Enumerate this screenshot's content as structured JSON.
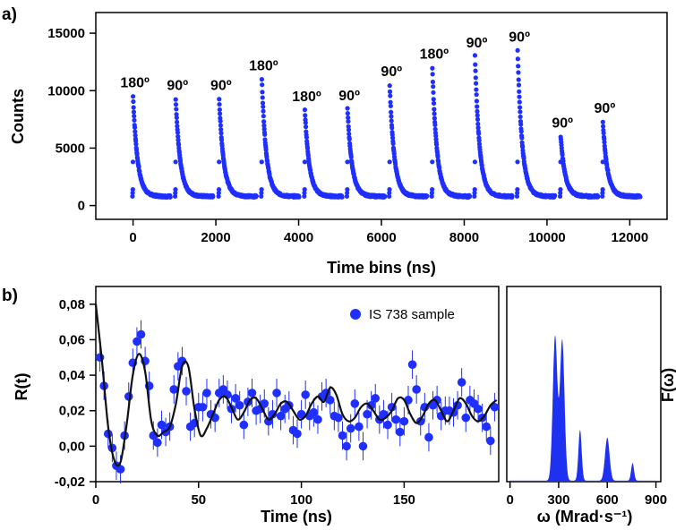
{
  "colors": {
    "points": "#1f2fff",
    "fit": "#111111",
    "axes": "#000000",
    "spectrum": "#1e30f0"
  },
  "chart_data": [
    {
      "panel": "a)",
      "type": "scatter",
      "xlabel": "Time bins (ns)",
      "ylabel": "Counts",
      "xlim": [
        -900,
        12900
      ],
      "ylim": [
        -1200,
        16800
      ],
      "xticks": [
        0,
        2000,
        4000,
        6000,
        8000,
        10000,
        12000
      ],
      "yticks": [
        0,
        5000,
        10000,
        15000
      ],
      "decays": [
        {
          "start": 0,
          "peak": 9500,
          "label": "180º"
        },
        {
          "start": 1030,
          "peak": 9300,
          "label": "90º"
        },
        {
          "start": 2080,
          "peak": 9300,
          "label": "90º"
        },
        {
          "start": 3110,
          "peak": 11000,
          "label": "180º"
        },
        {
          "start": 4150,
          "peak": 8300,
          "label": "180º"
        },
        {
          "start": 5180,
          "peak": 8400,
          "label": "90º"
        },
        {
          "start": 6200,
          "peak": 10500,
          "label": "90º"
        },
        {
          "start": 7230,
          "peak": 12000,
          "label": "180º"
        },
        {
          "start": 8260,
          "peak": 13000,
          "label": "90º"
        },
        {
          "start": 9290,
          "peak": 13500,
          "label": "90º"
        },
        {
          "start": 10330,
          "peak": 6000,
          "label": "90º"
        },
        {
          "start": 11350,
          "peak": 7300,
          "label": "90º"
        }
      ],
      "baseline": 800,
      "decay_constant_ns": 110,
      "segment_length_ns": 900
    },
    {
      "panel": "b)",
      "type": "scatter",
      "xlabel": "Time (ns)",
      "ylabel": "R(t)",
      "xlim": [
        0,
        196
      ],
      "ylim": [
        -0.02,
        0.09
      ],
      "xticks": [
        0,
        50,
        100,
        150
      ],
      "yticks": [
        -0.02,
        0.0,
        0.02,
        0.04,
        0.06,
        0.08
      ],
      "ytick_labels": [
        "-0,02",
        "0,00",
        "0,02",
        "0,04",
        "0,06",
        "0,08"
      ],
      "legend": "IS 738 sample",
      "series": [
        {
          "name": "IS 738 sample",
          "x": [
            2,
            4,
            6,
            8,
            10,
            12,
            14,
            16,
            18,
            20,
            22,
            24,
            26,
            28,
            30,
            32,
            34,
            36,
            38,
            40,
            42,
            44,
            46,
            48,
            50,
            52,
            54,
            56,
            58,
            60,
            62,
            64,
            66,
            68,
            70,
            72,
            74,
            76,
            78,
            80,
            82,
            84,
            86,
            88,
            90,
            92,
            94,
            96,
            98,
            100,
            102,
            104,
            106,
            108,
            110,
            112,
            114,
            116,
            118,
            120,
            122,
            124,
            126,
            128,
            130,
            132,
            134,
            136,
            138,
            140,
            142,
            144,
            146,
            148,
            150,
            152,
            154,
            156,
            158,
            160,
            162,
            164,
            166,
            168,
            170,
            172,
            174,
            176,
            178,
            180,
            182,
            184,
            186,
            188,
            190,
            192,
            194
          ],
          "y": [
            0.05,
            0.034,
            0.007,
            -0.001,
            -0.011,
            -0.013,
            0.006,
            0.028,
            0.047,
            0.059,
            0.063,
            0.048,
            0.034,
            0.006,
            0.002,
            0.012,
            0.008,
            0.011,
            0.032,
            0.045,
            0.048,
            0.031,
            0.011,
            0.013,
            0.022,
            0.022,
            0.03,
            0.018,
            0.016,
            0.03,
            0.032,
            0.029,
            0.021,
            0.027,
            0.023,
            0.012,
            0.025,
            0.03,
            0.02,
            0.021,
            0.024,
            0.014,
            0.018,
            0.03,
            0.017,
            0.021,
            0.023,
            0.009,
            0.007,
            0.018,
            0.029,
            0.017,
            0.019,
            0.015,
            0.028,
            0.03,
            0.026,
            0.017,
            0.016,
            0.006,
            0.0,
            0.01,
            0.024,
            0.011,
            0.0,
            0.018,
            0.023,
            0.027,
            0.015,
            0.018,
            0.012,
            0.022,
            0.015,
            0.008,
            0.014,
            0.026,
            0.046,
            0.032,
            0.014,
            0.022,
            0.005,
            0.023,
            0.026,
            0.017,
            0.02,
            0.02,
            0.019,
            0.023,
            0.036,
            0.016,
            0.026,
            0.024,
            0.021,
            0.016,
            0.011,
            0.003,
            0.022
          ],
          "error": 0.008
        }
      ],
      "fit": {
        "name": "fit",
        "x": [
          0,
          3,
          6,
          9,
          12,
          15,
          18,
          21,
          24,
          27,
          30,
          33,
          36,
          39,
          42,
          45,
          48,
          51,
          54,
          57,
          60,
          63,
          66,
          69,
          72,
          75,
          78,
          81,
          84,
          87,
          90,
          93,
          96,
          99,
          102,
          105,
          108,
          111,
          114,
          117,
          120,
          123,
          126,
          129,
          132,
          135,
          138,
          141,
          144,
          147,
          150,
          153,
          156,
          159,
          162,
          165,
          168,
          171,
          174,
          177,
          180,
          183,
          186,
          189,
          192,
          195
        ],
        "y": [
          0.08,
          0.048,
          0.011,
          -0.008,
          -0.009,
          0.012,
          0.04,
          0.052,
          0.042,
          0.014,
          0.006,
          0.008,
          0.011,
          0.024,
          0.045,
          0.045,
          0.021,
          0.006,
          0.01,
          0.018,
          0.026,
          0.028,
          0.022,
          0.015,
          0.019,
          0.026,
          0.027,
          0.021,
          0.015,
          0.018,
          0.024,
          0.025,
          0.02,
          0.015,
          0.017,
          0.024,
          0.028,
          0.025,
          0.033,
          0.029,
          0.018,
          0.014,
          0.016,
          0.022,
          0.024,
          0.02,
          0.015,
          0.016,
          0.02,
          0.027,
          0.026,
          0.018,
          0.013,
          0.017,
          0.024,
          0.026,
          0.02,
          0.014,
          0.02,
          0.027,
          0.024,
          0.017,
          0.014,
          0.017,
          0.023,
          0.026
        ]
      }
    },
    {
      "panel": "b-right",
      "type": "area",
      "xlabel": "ω (Mrad·s⁻¹)",
      "ylabel": "F(ω)",
      "xlim": [
        -20,
        930
      ],
      "xticks": [
        0,
        300,
        600,
        900
      ],
      "peaks": [
        {
          "center": 278,
          "height": 0.74,
          "width": 14
        },
        {
          "center": 322,
          "height": 0.72,
          "width": 14
        },
        {
          "center": 432,
          "height": 0.26,
          "width": 10
        },
        {
          "center": 600,
          "height": 0.22,
          "width": 14
        },
        {
          "center": 756,
          "height": 0.09,
          "width": 9
        }
      ]
    }
  ]
}
